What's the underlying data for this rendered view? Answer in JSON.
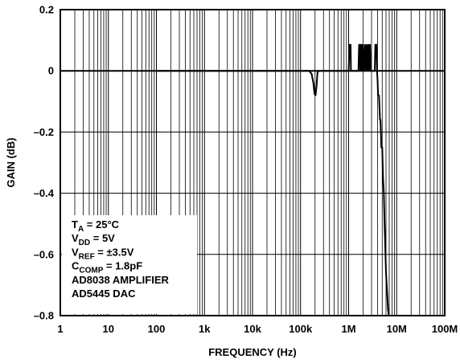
{
  "chart_data": {
    "type": "line",
    "title": "",
    "xlabel": "FREQUENCY (Hz)",
    "ylabel": "GAIN (dB)",
    "x_scale": "log",
    "xlim": [
      1,
      100000000
    ],
    "ylim": [
      -0.8,
      0.2
    ],
    "grid": true,
    "x_ticks": [
      1,
      10,
      100,
      1000,
      10000,
      100000,
      1000000,
      10000000,
      100000000
    ],
    "x_tick_labels": [
      "1",
      "10",
      "100",
      "1k",
      "10k",
      "100k",
      "1M",
      "10M",
      "100M"
    ],
    "y_ticks": [
      0.2,
      0,
      -0.2,
      -0.4,
      -0.6,
      -0.8
    ],
    "y_tick_labels": [
      "0.2",
      "0",
      "–0.2",
      "–0.4",
      "–0.6",
      "–0.8"
    ],
    "annotation": [
      {
        "main": "T",
        "sub": "A",
        "rest": " = 25°C"
      },
      {
        "main": "V",
        "sub": "DD",
        "rest": " = 5V"
      },
      {
        "main": "V",
        "sub": "REF",
        "rest": " = ±3.5V"
      },
      {
        "main": "C",
        "sub": "COMP",
        "rest": " = 1.8pF"
      },
      {
        "main": "AD8038 AMPLIFIER",
        "sub": "",
        "rest": ""
      },
      {
        "main": "AD5445 DAC",
        "sub": "",
        "rest": ""
      }
    ],
    "series": [
      {
        "x": [
          100,
          1000,
          10000,
          100000,
          150000,
          170000,
          185000,
          195000,
          205000,
          215000,
          225000,
          240000,
          1000000,
          1050000,
          1080000,
          1100000,
          1120000,
          1600000,
          1650000,
          1700000,
          1750000,
          1800000,
          1850000,
          1900000,
          1950000,
          2000000,
          2100000,
          2200000,
          2300000,
          2400000,
          2500000,
          2600000,
          2700000,
          2800000,
          2900000,
          3000000,
          3500000,
          3600000,
          3700000,
          3800000,
          3900000,
          4000000,
          4100000,
          4300000,
          4500000,
          4600000,
          4800000,
          5000000,
          5200000,
          5400000,
          5600000,
          5800000,
          6000000,
          6300000,
          6600000,
          6900000
        ],
        "y": [
          0,
          0,
          0,
          0,
          0,
          -0.01,
          -0.04,
          -0.075,
          -0.08,
          -0.05,
          -0.005,
          0,
          0,
          0.085,
          0.085,
          0.085,
          0,
          0,
          0.085,
          0.085,
          0,
          0.085,
          0,
          0.085,
          0,
          0.085,
          0,
          0.085,
          0,
          0.085,
          0,
          0.085,
          0,
          0.085,
          0,
          0,
          0,
          0.085,
          0.085,
          0.085,
          0,
          -0.03,
          -0.08,
          -0.08,
          -0.16,
          -0.16,
          -0.25,
          -0.25,
          -0.35,
          -0.4,
          -0.5,
          -0.58,
          -0.66,
          -0.72,
          -0.78,
          -0.8
        ]
      }
    ]
  }
}
